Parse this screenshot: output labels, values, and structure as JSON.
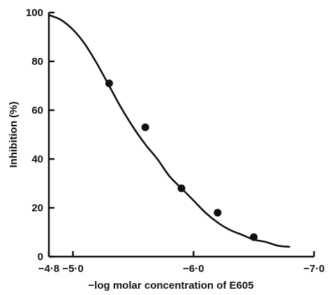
{
  "chart_data": {
    "type": "scatter",
    "title": "",
    "xlabel": "−log molar concentration of E605",
    "ylabel": "Inhibition (%)",
    "xlim": [
      -4.8,
      -7.0
    ],
    "ylim": [
      0,
      100
    ],
    "x_ticks": [
      -4.8,
      -5.0,
      -6.0,
      -7.0
    ],
    "x_tick_labels": [
      "−4·8",
      "−5·0",
      "−6·0",
      "−7·0"
    ],
    "y_ticks": [
      0,
      20,
      40,
      60,
      80,
      100
    ],
    "y_tick_labels": [
      "0",
      "20",
      "40",
      "60",
      "80",
      "100"
    ],
    "grid": false,
    "series": [
      {
        "kind": "points",
        "x": [
          -5.3,
          -5.6,
          -5.9,
          -6.2,
          -6.5
        ],
        "y": [
          71,
          53,
          28,
          18,
          8
        ]
      },
      {
        "kind": "fitted-curve",
        "x": [
          -4.8,
          -4.9,
          -5.0,
          -5.1,
          -5.2,
          -5.3,
          -5.4,
          -5.5,
          -5.6,
          -5.7,
          -5.8,
          -5.9,
          -6.0,
          -6.1,
          -6.2,
          -6.3,
          -6.4,
          -6.5,
          -6.6,
          -6.7,
          -6.8
        ],
        "y": [
          99,
          97,
          93,
          87,
          79,
          70,
          61,
          53,
          46,
          40,
          33,
          28,
          23,
          18,
          14,
          11,
          9,
          7,
          6,
          4.5,
          4
        ]
      }
    ]
  }
}
